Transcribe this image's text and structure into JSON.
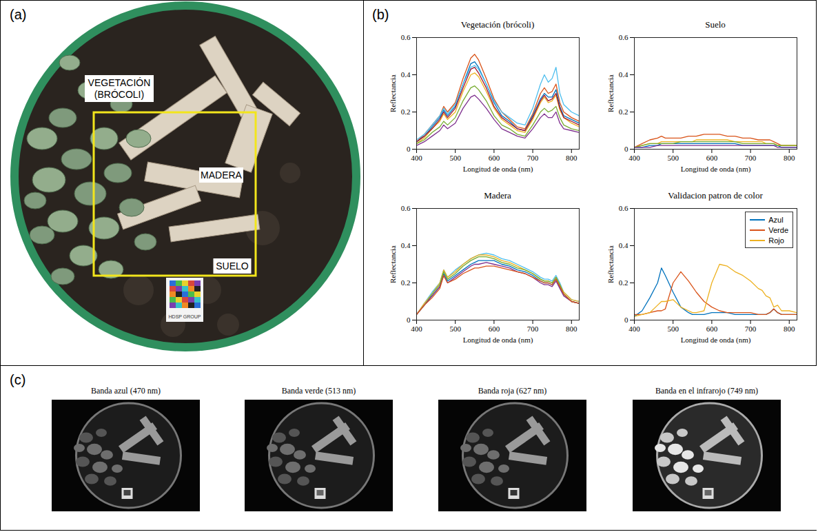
{
  "panel_labels": [
    "(a)",
    "(b)",
    "(c)"
  ],
  "photo": {
    "labels": [
      "VEGETACIÓN (BRÓCOLI)",
      "MADERA",
      "SUELO"
    ],
    "target_label": "HDSP GROUP"
  },
  "bands": {
    "titles": [
      "Banda azul (470 nm)",
      "Banda verde (513 nm)",
      "Banda roja (627 nm)",
      "Banda en el infrarojo (749 nm)"
    ]
  },
  "chart_data": [
    {
      "type": "line",
      "title": "Vegetación (brócoli)",
      "x_label": "Longitud de onda (nm)",
      "y_label": "Reflectancia",
      "xlim": [
        400,
        820
      ],
      "xticks": [
        400,
        500,
        600,
        700,
        800
      ],
      "ylim": [
        0,
        0.6
      ],
      "yticks": [
        0,
        0.2,
        0.4,
        0.6
      ],
      "x": [
        400,
        420,
        440,
        460,
        470,
        480,
        500,
        520,
        540,
        550,
        560,
        580,
        600,
        620,
        640,
        660,
        680,
        700,
        720,
        730,
        740,
        750,
        760,
        770,
        780,
        800,
        820
      ],
      "series": [
        {
          "color": "#D95319",
          "values": [
            0.04,
            0.08,
            0.13,
            0.18,
            0.23,
            0.2,
            0.25,
            0.38,
            0.49,
            0.51,
            0.48,
            0.38,
            0.27,
            0.2,
            0.16,
            0.12,
            0.11,
            0.19,
            0.3,
            0.33,
            0.3,
            0.31,
            0.35,
            0.25,
            0.2,
            0.17,
            0.15
          ]
        },
        {
          "color": "#0072BD",
          "values": [
            0.04,
            0.07,
            0.12,
            0.17,
            0.21,
            0.18,
            0.23,
            0.35,
            0.46,
            0.47,
            0.44,
            0.35,
            0.25,
            0.18,
            0.15,
            0.11,
            0.1,
            0.18,
            0.27,
            0.3,
            0.28,
            0.28,
            0.32,
            0.23,
            0.18,
            0.16,
            0.14
          ]
        },
        {
          "color": "#4DBEEE",
          "values": [
            0.05,
            0.08,
            0.13,
            0.18,
            0.22,
            0.19,
            0.24,
            0.35,
            0.44,
            0.45,
            0.43,
            0.35,
            0.26,
            0.2,
            0.17,
            0.14,
            0.13,
            0.22,
            0.35,
            0.4,
            0.36,
            0.38,
            0.44,
            0.3,
            0.24,
            0.2,
            0.18
          ]
        },
        {
          "color": "#EDB120",
          "values": [
            0.03,
            0.06,
            0.11,
            0.15,
            0.19,
            0.16,
            0.2,
            0.31,
            0.4,
            0.41,
            0.39,
            0.31,
            0.22,
            0.16,
            0.13,
            0.1,
            0.09,
            0.16,
            0.25,
            0.28,
            0.25,
            0.26,
            0.29,
            0.21,
            0.17,
            0.14,
            0.12
          ]
        },
        {
          "color": "#A2142F",
          "values": [
            0.04,
            0.07,
            0.11,
            0.16,
            0.2,
            0.17,
            0.22,
            0.33,
            0.43,
            0.44,
            0.41,
            0.33,
            0.23,
            0.17,
            0.14,
            0.11,
            0.1,
            0.17,
            0.26,
            0.29,
            0.26,
            0.27,
            0.3,
            0.22,
            0.17,
            0.15,
            0.13
          ]
        },
        {
          "color": "#77AC30",
          "values": [
            0.03,
            0.05,
            0.09,
            0.12,
            0.15,
            0.13,
            0.17,
            0.26,
            0.33,
            0.34,
            0.32,
            0.26,
            0.18,
            0.13,
            0.11,
            0.08,
            0.07,
            0.13,
            0.2,
            0.22,
            0.2,
            0.21,
            0.23,
            0.17,
            0.13,
            0.11,
            0.1
          ]
        },
        {
          "color": "#7E2F8E",
          "values": [
            0.02,
            0.04,
            0.07,
            0.1,
            0.13,
            0.11,
            0.14,
            0.22,
            0.28,
            0.29,
            0.27,
            0.22,
            0.16,
            0.11,
            0.09,
            0.07,
            0.06,
            0.11,
            0.17,
            0.19,
            0.17,
            0.17,
            0.2,
            0.14,
            0.11,
            0.1,
            0.09
          ]
        }
      ]
    },
    {
      "type": "line",
      "title": "Suelo",
      "x_label": "Longitud de onda (nm)",
      "y_label": "Reflectancia",
      "xlim": [
        400,
        820
      ],
      "xticks": [
        400,
        500,
        600,
        700,
        800
      ],
      "ylim": [
        0,
        0.6
      ],
      "yticks": [
        0,
        0.2,
        0.4,
        0.6
      ],
      "x": [
        400,
        420,
        440,
        460,
        470,
        480,
        500,
        520,
        540,
        550,
        560,
        580,
        600,
        620,
        640,
        660,
        680,
        700,
        720,
        730,
        740,
        750,
        760,
        770,
        780,
        800,
        820
      ],
      "series": [
        {
          "color": "#0072BD",
          "values": [
            0.01,
            0.01,
            0.02,
            0.02,
            0.03,
            0.03,
            0.03,
            0.03,
            0.03,
            0.03,
            0.03,
            0.03,
            0.03,
            0.03,
            0.03,
            0.03,
            0.02,
            0.02,
            0.02,
            0.02,
            0.02,
            0.02,
            0.02,
            0.02,
            0.01,
            0.01,
            0.01
          ]
        },
        {
          "color": "#D95319",
          "values": [
            0.01,
            0.03,
            0.05,
            0.06,
            0.07,
            0.06,
            0.06,
            0.06,
            0.07,
            0.07,
            0.07,
            0.08,
            0.08,
            0.08,
            0.07,
            0.07,
            0.06,
            0.06,
            0.05,
            0.05,
            0.05,
            0.05,
            0.04,
            0.03,
            0.02,
            0.02,
            0.02
          ]
        },
        {
          "color": "#EDB120",
          "values": [
            0.01,
            0.02,
            0.03,
            0.03,
            0.04,
            0.04,
            0.04,
            0.04,
            0.04,
            0.04,
            0.05,
            0.05,
            0.05,
            0.05,
            0.05,
            0.04,
            0.04,
            0.04,
            0.04,
            0.04,
            0.03,
            0.03,
            0.03,
            0.02,
            0.02,
            0.02,
            0.02
          ]
        },
        {
          "color": "#77AC30",
          "values": [
            0.01,
            0.02,
            0.03,
            0.03,
            0.03,
            0.03,
            0.03,
            0.04,
            0.04,
            0.04,
            0.04,
            0.04,
            0.04,
            0.04,
            0.04,
            0.04,
            0.03,
            0.03,
            0.03,
            0.03,
            0.03,
            0.03,
            0.03,
            0.02,
            0.02,
            0.02,
            0.02
          ]
        },
        {
          "color": "#7E2F8E",
          "values": [
            0.01,
            0.01,
            0.01,
            0.02,
            0.02,
            0.02,
            0.02,
            0.02,
            0.02,
            0.02,
            0.02,
            0.02,
            0.02,
            0.02,
            0.02,
            0.02,
            0.02,
            0.02,
            0.02,
            0.02,
            0.02,
            0.02,
            0.02,
            0.01,
            0.01,
            0.01,
            0.01
          ]
        }
      ]
    },
    {
      "type": "line",
      "title": "Madera",
      "x_label": "Longitud de onda (nm)",
      "y_label": "Reflectancia",
      "xlim": [
        400,
        820
      ],
      "xticks": [
        400,
        500,
        600,
        700,
        800
      ],
      "ylim": [
        0,
        0.6
      ],
      "yticks": [
        0,
        0.2,
        0.4,
        0.6
      ],
      "x": [
        400,
        420,
        440,
        460,
        470,
        480,
        500,
        520,
        540,
        550,
        560,
        580,
        600,
        620,
        640,
        660,
        680,
        700,
        720,
        730,
        740,
        750,
        760,
        770,
        780,
        800,
        820
      ],
      "series": [
        {
          "color": "#0072BD",
          "values": [
            0.03,
            0.08,
            0.13,
            0.18,
            0.25,
            0.21,
            0.24,
            0.27,
            0.3,
            0.31,
            0.32,
            0.32,
            0.32,
            0.3,
            0.29,
            0.27,
            0.26,
            0.24,
            0.21,
            0.2,
            0.2,
            0.19,
            0.22,
            0.18,
            0.14,
            0.1,
            0.09
          ]
        },
        {
          "color": "#4DBEEE",
          "values": [
            0.03,
            0.09,
            0.15,
            0.2,
            0.27,
            0.23,
            0.27,
            0.3,
            0.33,
            0.34,
            0.35,
            0.36,
            0.35,
            0.33,
            0.32,
            0.3,
            0.28,
            0.26,
            0.23,
            0.22,
            0.22,
            0.21,
            0.24,
            0.2,
            0.15,
            0.11,
            0.1
          ]
        },
        {
          "color": "#EDB120",
          "values": [
            0.03,
            0.09,
            0.14,
            0.2,
            0.27,
            0.23,
            0.26,
            0.3,
            0.33,
            0.34,
            0.35,
            0.35,
            0.34,
            0.32,
            0.31,
            0.29,
            0.27,
            0.25,
            0.22,
            0.21,
            0.21,
            0.2,
            0.23,
            0.19,
            0.15,
            0.11,
            0.1
          ]
        },
        {
          "color": "#77AC30",
          "values": [
            0.03,
            0.08,
            0.14,
            0.19,
            0.26,
            0.22,
            0.25,
            0.29,
            0.32,
            0.33,
            0.34,
            0.34,
            0.33,
            0.31,
            0.3,
            0.28,
            0.27,
            0.25,
            0.22,
            0.21,
            0.21,
            0.2,
            0.23,
            0.19,
            0.14,
            0.1,
            0.09
          ]
        },
        {
          "color": "#7E2F8E",
          "values": [
            0.03,
            0.08,
            0.13,
            0.18,
            0.24,
            0.2,
            0.23,
            0.26,
            0.29,
            0.3,
            0.3,
            0.31,
            0.3,
            0.29,
            0.28,
            0.26,
            0.25,
            0.23,
            0.2,
            0.19,
            0.19,
            0.18,
            0.21,
            0.17,
            0.13,
            0.1,
            0.09
          ]
        },
        {
          "color": "#D95319",
          "values": [
            0.03,
            0.08,
            0.12,
            0.17,
            0.24,
            0.2,
            0.22,
            0.25,
            0.27,
            0.28,
            0.28,
            0.29,
            0.29,
            0.28,
            0.27,
            0.26,
            0.25,
            0.23,
            0.21,
            0.2,
            0.2,
            0.19,
            0.22,
            0.18,
            0.14,
            0.1,
            0.09
          ]
        }
      ]
    },
    {
      "type": "line",
      "title": "Validacion patron de color",
      "x_label": "Longitud de onda (nm)",
      "y_label": "Reflectancia",
      "xlim": [
        400,
        820
      ],
      "xticks": [
        400,
        500,
        600,
        700,
        800
      ],
      "ylim": [
        0,
        0.6
      ],
      "yticks": [
        0,
        0.2,
        0.4,
        0.6
      ],
      "legend": "northeast",
      "x": [
        400,
        420,
        440,
        460,
        470,
        480,
        500,
        520,
        540,
        550,
        560,
        580,
        600,
        620,
        640,
        660,
        680,
        700,
        720,
        730,
        740,
        750,
        760,
        770,
        780,
        800,
        820
      ],
      "series": [
        {
          "name": "Azul",
          "color": "#0072BD",
          "values": [
            0.02,
            0.05,
            0.12,
            0.2,
            0.28,
            0.24,
            0.15,
            0.07,
            0.04,
            0.03,
            0.03,
            0.03,
            0.04,
            0.04,
            0.04,
            0.03,
            0.03,
            0.03,
            0.03,
            0.03,
            0.03,
            0.04,
            0.06,
            0.04,
            0.03,
            0.03,
            0.03
          ]
        },
        {
          "name": "Verde",
          "color": "#D95319",
          "values": [
            0.03,
            0.03,
            0.04,
            0.05,
            0.05,
            0.06,
            0.2,
            0.26,
            0.21,
            0.18,
            0.15,
            0.1,
            0.07,
            0.05,
            0.04,
            0.04,
            0.04,
            0.04,
            0.03,
            0.03,
            0.03,
            0.04,
            0.06,
            0.04,
            0.03,
            0.03,
            0.03
          ]
        },
        {
          "name": "Rojo",
          "color": "#EDB120",
          "values": [
            0.02,
            0.03,
            0.04,
            0.08,
            0.1,
            0.1,
            0.11,
            0.07,
            0.05,
            0.04,
            0.04,
            0.05,
            0.2,
            0.3,
            0.29,
            0.26,
            0.24,
            0.21,
            0.17,
            0.16,
            0.13,
            0.12,
            0.07,
            0.08,
            0.05,
            0.05,
            0.04
          ]
        }
      ]
    }
  ]
}
